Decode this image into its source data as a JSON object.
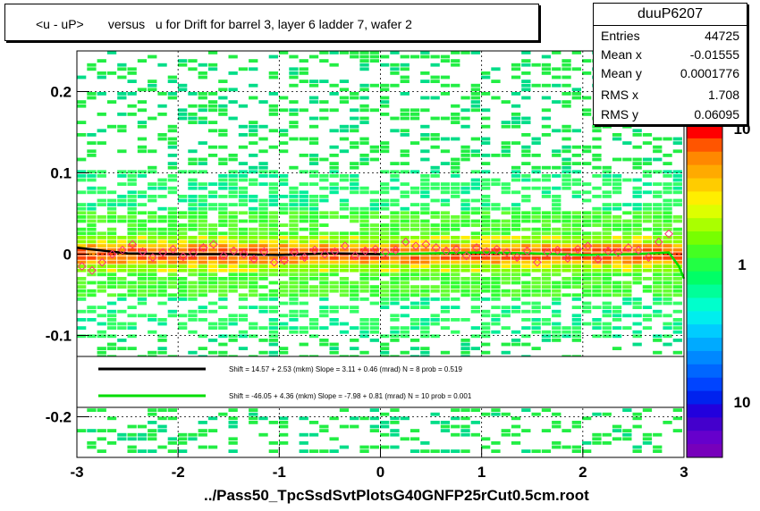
{
  "title": "<u - uP>       versus   u for Drift for barrel 3, layer 6 ladder 7, wafer 2",
  "stats": {
    "name": "duuP6207",
    "rows": [
      {
        "label": "Entries",
        "value": "44725"
      },
      {
        "label": "Mean x",
        "value": "-0.01555"
      },
      {
        "label": "Mean y",
        "value": "0.0001776"
      },
      {
        "label": "RMS x",
        "value": "1.708"
      },
      {
        "label": "RMS y",
        "value": "0.06095"
      }
    ]
  },
  "xlabel": "../Pass50_TpcSsdSvtPlotsG40GNFP25rCut0.5cm.root",
  "colors": {
    "black_fit": "#000000",
    "green_fit": "#00dd00",
    "markers": "#ff3377",
    "accent": "#ff0000"
  },
  "chart_data": {
    "type": "heatmap",
    "xlim": [
      -3,
      3
    ],
    "ylim": [
      -0.25,
      0.25
    ],
    "x_ticks": [
      "-3",
      "-2",
      "-1",
      "0",
      "1",
      "2",
      "3"
    ],
    "y_ticks": [
      "-0.2",
      "-0.1",
      "0",
      "0.1",
      "0.2"
    ],
    "y_tick_values": [
      -0.2,
      -0.1,
      0,
      0.1,
      0.2
    ],
    "x_tick_values": [
      -3,
      -2,
      -1,
      0,
      1,
      2,
      3
    ],
    "grid": true,
    "colorbar_labels": [
      "10",
      "1",
      "10"
    ],
    "fits": [
      {
        "name": "black",
        "text": "Shift =    14.57 + 2.53 (mkm) Slope =    3.11 + 0.46 (mrad)  N = 8 prob = 0.519",
        "x": [
          -3,
          -2.5,
          -2,
          -1.5,
          -1,
          -0.5,
          0
        ],
        "y": [
          0.008,
          0.001,
          0.0,
          0.0,
          -0.001,
          0.001,
          0.0
        ]
      },
      {
        "name": "green",
        "text": "Shift =   -46.05 + 4.36 (mkm) Slope =    -7.98 + 0.81 (mrad)  N = 10 prob = 0.001",
        "x": [
          0,
          0.5,
          1,
          1.5,
          2,
          2.5,
          2.85,
          2.95,
          3
        ],
        "y": [
          0.0,
          0.001,
          0.002,
          0.001,
          -0.001,
          0.0,
          0.002,
          -0.015,
          -0.03
        ]
      }
    ],
    "profile_points": {
      "x": [
        -2.95,
        -2.85,
        -2.75,
        -2.65,
        -2.55,
        -2.45,
        -2.35,
        -2.25,
        -2.15,
        -2.05,
        -1.95,
        -1.85,
        -1.75,
        -1.65,
        -1.55,
        -1.45,
        -1.35,
        -1.25,
        -1.15,
        -1.05,
        -0.95,
        -0.85,
        -0.75,
        -0.65,
        -0.55,
        -0.45,
        -0.35,
        -0.25,
        -0.15,
        -0.05,
        0.05,
        0.15,
        0.25,
        0.35,
        0.45,
        0.55,
        0.65,
        0.75,
        0.85,
        0.95,
        1.05,
        1.15,
        1.25,
        1.35,
        1.45,
        1.55,
        1.65,
        1.75,
        1.85,
        1.95,
        2.05,
        2.15,
        2.25,
        2.35,
        2.45,
        2.55,
        2.65,
        2.75,
        2.85
      ],
      "y": [
        -0.015,
        -0.02,
        -0.01,
        0.0,
        0.005,
        0.012,
        0.003,
        -0.004,
        0.002,
        0.006,
        -0.003,
        0.001,
        0.008,
        0.012,
        -0.002,
        0.004,
        0.0,
        -0.006,
        0.003,
        -0.01,
        -0.008,
        0.002,
        -0.004,
        0.005,
        0.0,
        0.003,
        0.01,
        -0.002,
        0.004,
        0.006,
        0.002,
        0.005,
        0.015,
        0.01,
        0.012,
        0.008,
        0.004,
        0.006,
        -0.002,
        0.008,
        0.003,
        0.006,
        0.002,
        -0.004,
        0.004,
        -0.01,
        0.002,
        0.005,
        -0.005,
        0.006,
        0.01,
        -0.006,
        0.004,
        0.002,
        0.008,
        0.005,
        -0.004,
        0.015,
        0.025
      ]
    }
  }
}
